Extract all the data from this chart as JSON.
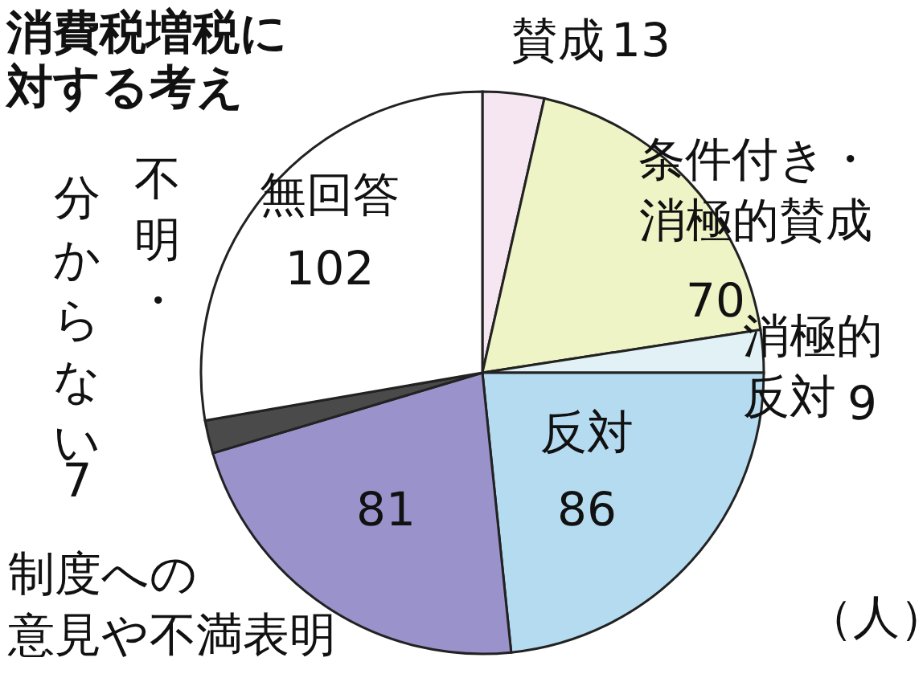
{
  "chart_data": {
    "type": "pie",
    "title": "消費税増税に対する考え",
    "categories": [
      "賛成",
      "条件付き・消極的賛成",
      "消極的反対",
      "反対",
      "制度への意見や不満表明",
      "不明・分からない",
      "無回答"
    ],
    "values": [
      13,
      70,
      9,
      86,
      81,
      7,
      102
    ],
    "colors": [
      "#f6e6f1",
      "#eef4c6",
      "#e2f1f6",
      "#b5dbf1",
      "#9a92cb",
      "#4a4a4a",
      "#ffffff"
    ],
    "data_labels": true,
    "annotations": [
      "（人）"
    ]
  }
}
